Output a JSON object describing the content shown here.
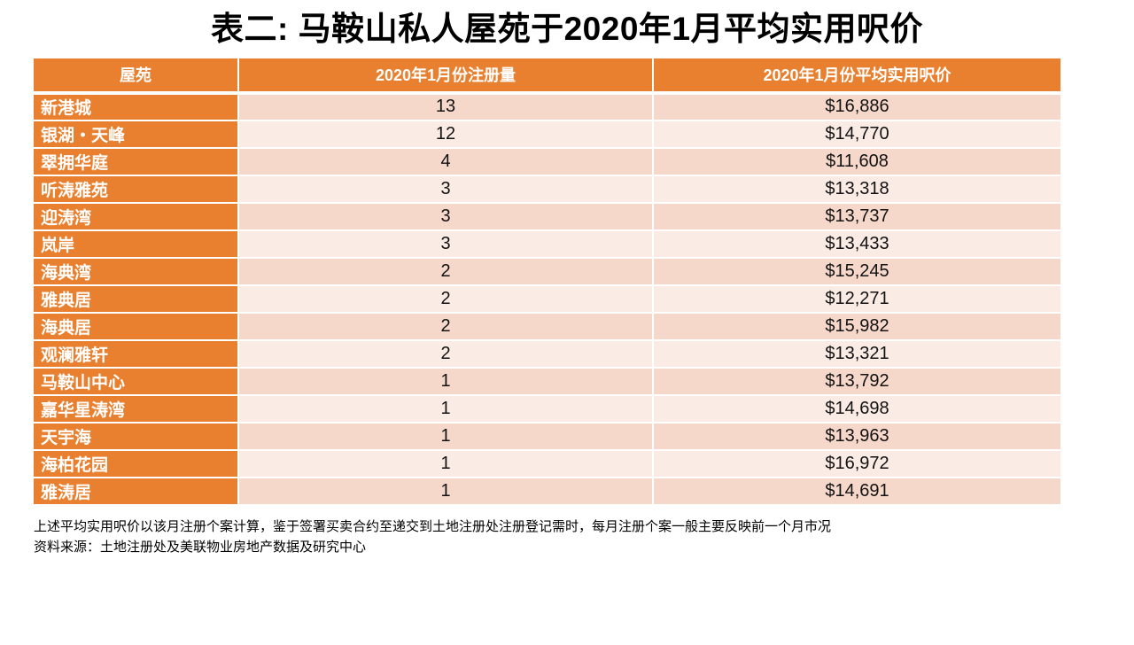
{
  "slide": {
    "title": "表二: 马鞍山私人屋苑于2020年1月平均实用呎价"
  },
  "table": {
    "columns": [
      "屋苑",
      "2020年1月份注册量",
      "2020年1月份平均实用呎价"
    ],
    "rows": [
      {
        "estate": "新港城",
        "registrations": "13",
        "price": "$16,886"
      },
      {
        "estate": "银湖・天峰",
        "registrations": "12",
        "price": "$14,770"
      },
      {
        "estate": "翠拥华庭",
        "registrations": "4",
        "price": "$11,608"
      },
      {
        "estate": "听涛雅苑",
        "registrations": "3",
        "price": "$13,318"
      },
      {
        "estate": "迎涛湾",
        "registrations": "3",
        "price": "$13,737"
      },
      {
        "estate": "岚岸",
        "registrations": "3",
        "price": "$13,433"
      },
      {
        "estate": "海典湾",
        "registrations": "2",
        "price": "$15,245"
      },
      {
        "estate": "雅典居",
        "registrations": "2",
        "price": "$12,271"
      },
      {
        "estate": "海典居",
        "registrations": "2",
        "price": "$15,982"
      },
      {
        "estate": "观澜雅轩",
        "registrations": "2",
        "price": "$13,321"
      },
      {
        "estate": "马鞍山中心",
        "registrations": "1",
        "price": "$13,792"
      },
      {
        "estate": "嘉华星涛湾",
        "registrations": "1",
        "price": "$14,698"
      },
      {
        "estate": "天宇海",
        "registrations": "1",
        "price": "$13,963"
      },
      {
        "estate": "海柏花园",
        "registrations": "1",
        "price": "$16,972"
      },
      {
        "estate": "雅涛居",
        "registrations": "1",
        "price": "$14,691"
      }
    ]
  },
  "footnotes": [
    "上述平均实用呎价以该月注册个案计算，鉴于签署买卖合约至递交到土地注册处注册登记需时，每月注册个案一般主要反映前一个月市况",
    "资料来源：土地注册处及美联物业房地产数据及研究中心"
  ],
  "colors": {
    "header_bg": "#E8802F",
    "row_band_dark": "#F6D8CB",
    "row_band_light": "#FBEBE5",
    "header_text": "#FFFFFF",
    "body_text": "#000000"
  },
  "chart_data": {
    "type": "table",
    "title": "表二: 马鞍山私人屋苑于2020年1月平均实用呎价",
    "columns": [
      "屋苑",
      "2020年1月份注册量",
      "2020年1月份平均实用呎价"
    ],
    "rows": [
      [
        "新港城",
        13,
        16886
      ],
      [
        "银湖・天峰",
        12,
        14770
      ],
      [
        "翠拥华庭",
        4,
        11608
      ],
      [
        "听涛雅苑",
        3,
        13318
      ],
      [
        "迎涛湾",
        3,
        13737
      ],
      [
        "岚岸",
        3,
        13433
      ],
      [
        "海典湾",
        2,
        15245
      ],
      [
        "雅典居",
        2,
        12271
      ],
      [
        "海典居",
        2,
        15982
      ],
      [
        "观澜雅轩",
        2,
        13321
      ],
      [
        "马鞍山中心",
        1,
        13792
      ],
      [
        "嘉华星涛湾",
        1,
        14698
      ],
      [
        "天宇海",
        1,
        13963
      ],
      [
        "海柏花园",
        1,
        16972
      ],
      [
        "雅涛居",
        1,
        14691
      ]
    ],
    "notes": [
      "上述平均实用呎价以该月注册个案计算，鉴于签署买卖合约至递交到土地注册处注册登记需时，每月注册个案一般主要反映前一个月市况",
      "资料来源：土地注册处及美联物业房地产数据及研究中心"
    ]
  }
}
